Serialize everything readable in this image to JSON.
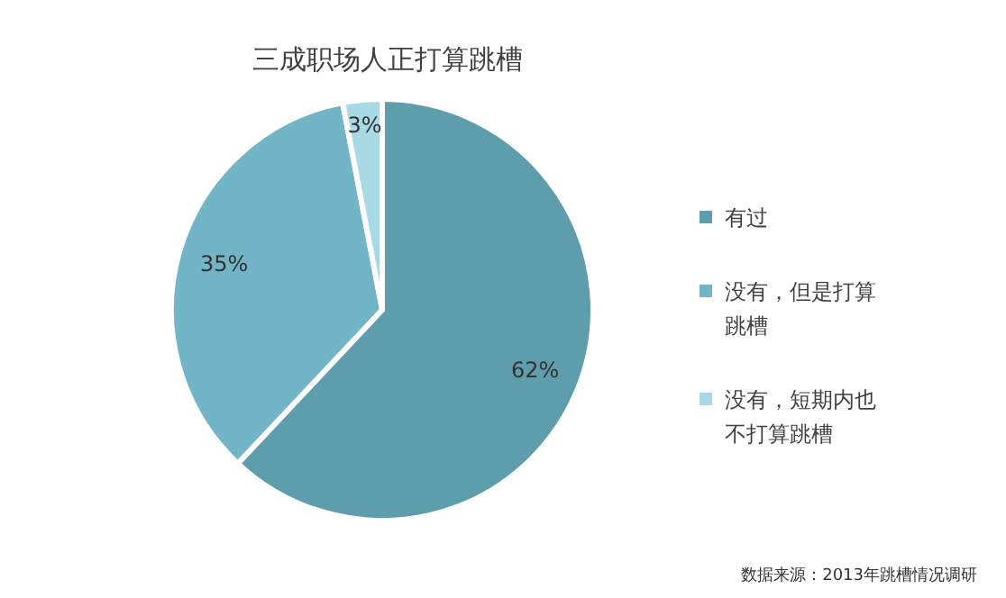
{
  "chart_data": {
    "type": "pie",
    "title": "三成职场人正打算跳槽",
    "categories": [
      "有过",
      "没有，但是打算跳槽",
      "没有，短期内也不打算跳槽"
    ],
    "values": [
      62,
      35,
      3
    ],
    "colors": [
      "#5e9dab",
      "#72b5c6",
      "#a9d9e5"
    ],
    "value_labels": [
      "62%",
      "35%",
      "3%"
    ],
    "legend": "right",
    "annotations": [
      "数据来源：2013年跳槽情况调研"
    ]
  }
}
